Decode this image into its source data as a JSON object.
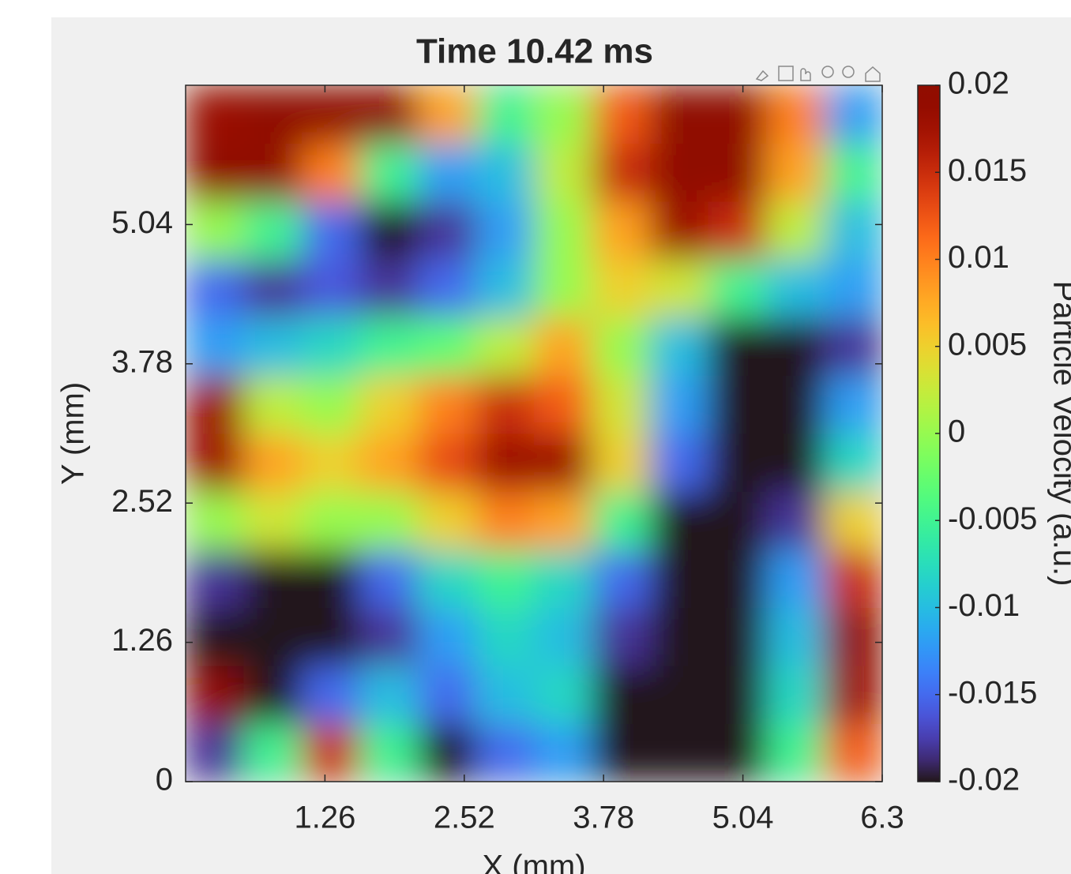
{
  "chart_data": {
    "type": "heatmap",
    "title": "Time 10.42 ms",
    "x_label": "X (mm)",
    "y_label": "Y (mm)",
    "colorbar_label": "Particle Velocity (a.u.)",
    "colormap": "turbo",
    "xlim": [
      0,
      6.3
    ],
    "ylim": [
      0,
      6.3
    ],
    "xticks": [
      1.26,
      2.52,
      3.78,
      5.04,
      6.3
    ],
    "yticks": [
      0,
      1.26,
      2.52,
      3.78,
      5.04
    ],
    "clim": [
      -0.02,
      0.02
    ],
    "cticks": [
      -0.02,
      -0.015,
      -0.01,
      -0.005,
      0,
      0.005,
      0.01,
      0.015,
      0.02
    ],
    "z": [
      [
        -0.018,
        -0.005,
        0.015,
        -0.005,
        -0.02,
        -0.015,
        -0.012,
        -0.02,
        -0.02,
        -0.02,
        -0.005,
        0.012
      ],
      [
        0.02,
        -0.02,
        -0.015,
        -0.01,
        -0.015,
        -0.01,
        -0.008,
        -0.02,
        -0.02,
        -0.02,
        -0.008,
        0.018
      ],
      [
        -0.02,
        -0.02,
        -0.02,
        -0.018,
        -0.012,
        -0.008,
        -0.01,
        -0.018,
        -0.02,
        -0.02,
        -0.01,
        0.02
      ],
      [
        -0.018,
        -0.02,
        -0.02,
        -0.015,
        -0.008,
        -0.005,
        -0.008,
        -0.015,
        -0.02,
        -0.02,
        -0.012,
        0.015
      ],
      [
        0,
        0.003,
        0,
        0,
        0.005,
        0.01,
        0.008,
        -0.005,
        -0.02,
        -0.02,
        -0.018,
        0.005
      ],
      [
        0.018,
        0.008,
        0.005,
        0.008,
        0.013,
        0.018,
        0.018,
        0.005,
        -0.015,
        -0.02,
        -0.02,
        -0.008
      ],
      [
        0.018,
        0.002,
        0,
        0.005,
        0.01,
        0.015,
        0.012,
        0.003,
        -0.012,
        -0.02,
        -0.02,
        -0.012
      ],
      [
        -0.012,
        -0.01,
        -0.008,
        -0.005,
        -0.003,
        0.002,
        0.008,
        0,
        -0.01,
        -0.02,
        -0.02,
        -0.018
      ],
      [
        -0.015,
        -0.018,
        -0.016,
        -0.018,
        -0.015,
        -0.01,
        0,
        0.005,
        0.003,
        -0.005,
        -0.01,
        -0.012
      ],
      [
        0,
        -0.005,
        -0.015,
        -0.02,
        -0.018,
        -0.012,
        0,
        0.008,
        0.018,
        0.015,
        0.002,
        -0.01
      ],
      [
        0.02,
        0.02,
        0.01,
        -0.005,
        -0.012,
        -0.01,
        0.002,
        0.015,
        0.02,
        0.02,
        0.008,
        -0.005
      ],
      [
        0.018,
        0.02,
        0.02,
        0.02,
        0.008,
        -0.005,
        0,
        0.012,
        0.02,
        0.02,
        0.01,
        -0.012
      ]
    ]
  }
}
